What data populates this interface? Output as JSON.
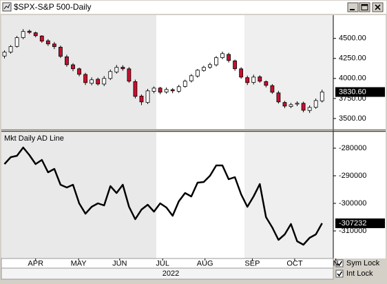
{
  "window": {
    "title": "$SPX-S&P 500-Daily",
    "checkboxes": [
      "Sym Lock",
      "Int Lock"
    ]
  },
  "chart_data": [
    {
      "type": "candlestick",
      "xlim": [
        -0.5,
        52.8
      ],
      "ylim": [
        3370,
        4790
      ],
      "yticks": [
        {
          "value": 4500,
          "label": "4500.00"
        },
        {
          "value": 4250,
          "label": "4250.00"
        },
        {
          "value": 4000,
          "label": "4000.00"
        },
        {
          "value": 3750,
          "label": "3750.00"
        },
        {
          "value": 3500,
          "label": "3500.00"
        }
      ],
      "up_color": "#ffffff",
      "down_color": "#c8102e",
      "open": [
        4280,
        4330,
        4400,
        4510,
        4590,
        4570,
        4530,
        4470,
        4430,
        4390,
        4270,
        4170,
        4120,
        4050,
        3940,
        3990,
        3930,
        4000,
        4080,
        4140,
        4120,
        3960,
        3780,
        3700,
        3840,
        3880,
        3830,
        3860,
        3840,
        3900,
        3970,
        4030,
        4100,
        4140,
        4170,
        4260,
        4300,
        4220,
        4120,
        4010,
        3950,
        4020,
        3960,
        3910,
        3820,
        3700,
        3650,
        3680,
        3690,
        3600,
        3640,
        3720
      ],
      "high": [
        4350,
        4415,
        4530,
        4615,
        4610,
        4585,
        4540,
        4490,
        4455,
        4410,
        4295,
        4190,
        4135,
        4070,
        4013,
        4010,
        4030,
        4111,
        4168,
        4165,
        4141,
        3985,
        3800,
        3870,
        3900,
        3895,
        3887,
        3880,
        3920,
        3985,
        4054,
        4118,
        4158,
        4197,
        4279,
        4335,
        4320,
        4235,
        4140,
        4035,
        4047,
        4040,
        3975,
        3930,
        3845,
        3720,
        3695,
        3715,
        3710,
        3663,
        3749,
        3860
      ],
      "low": [
        4250,
        4310,
        4385,
        4490,
        4555,
        4514,
        4446,
        4406,
        4367,
        4256,
        4147,
        4091,
        4027,
        3918,
        3915,
        3911,
        3905,
        3980,
        4060,
        4096,
        3946,
        3751,
        3667,
        3680,
        3815,
        3803,
        3810,
        3815,
        3820,
        3885,
        3950,
        4010,
        4085,
        4120,
        4150,
        4240,
        4199,
        4096,
        3997,
        3918,
        3925,
        3946,
        3889,
        3808,
        3687,
        3630,
        3630,
        3655,
        3578,
        3570,
        3620,
        3700
      ],
      "close": [
        4328,
        4397,
        4509,
        4586,
        4575,
        4534,
        4466,
        4431,
        4397,
        4276,
        4172,
        4121,
        4052,
        3948,
        3983,
        3931,
        4000,
        4086,
        4138,
        4121,
        3966,
        3776,
        3707,
        3845,
        3879,
        3828,
        3862,
        3845,
        3897,
        3966,
        4034,
        4103,
        4138,
        4172,
        4259,
        4310,
        4224,
        4121,
        4017,
        3948,
        4017,
        3966,
        3914,
        3828,
        3707,
        3655,
        3672,
        3690,
        3603,
        3638,
        3724,
        3830.6
      ],
      "last_value": {
        "value": 3830.6,
        "label": "3830.60"
      }
    },
    {
      "type": "line",
      "title": "Mkt Daily AD Line",
      "color": "#000000",
      "xlim": [
        -0.5,
        52.8
      ],
      "ylim": [
        -320000,
        -274250
      ],
      "yticks": [
        -280000,
        -290000,
        -300000,
        -310000
      ],
      "values": [
        -285750,
        -283250,
        -282750,
        -279750,
        -282500,
        -285750,
        -284250,
        -288750,
        -287500,
        -293250,
        -294250,
        -293250,
        -300000,
        -303750,
        -301250,
        -300000,
        -300750,
        -293750,
        -296250,
        -293250,
        -301250,
        -305750,
        -302250,
        -300500,
        -303000,
        -300000,
        -301500,
        -304500,
        -299250,
        -296250,
        -297500,
        -292500,
        -292250,
        -290000,
        -286250,
        -286250,
        -291250,
        -290500,
        -296750,
        -301250,
        -297500,
        -293000,
        -305000,
        -308750,
        -313250,
        -311250,
        -307500,
        -313750,
        -315000,
        -312500,
        -311250,
        -307232
      ],
      "last_value": -307232,
      "xticks": [
        {
          "value": 5.0,
          "label": "APR"
        },
        {
          "value": 11.9,
          "label": "MAY"
        },
        {
          "value": 18.5,
          "label": "JUN"
        },
        {
          "value": 25.4,
          "label": "JUL"
        },
        {
          "value": 32.2,
          "label": "AUG"
        },
        {
          "value": 39.8,
          "label": "SEP"
        },
        {
          "value": 46.6,
          "label": "OCT"
        },
        {
          "value": 53.2,
          "label": "N"
        }
      ],
      "xlabel": "2022"
    }
  ]
}
